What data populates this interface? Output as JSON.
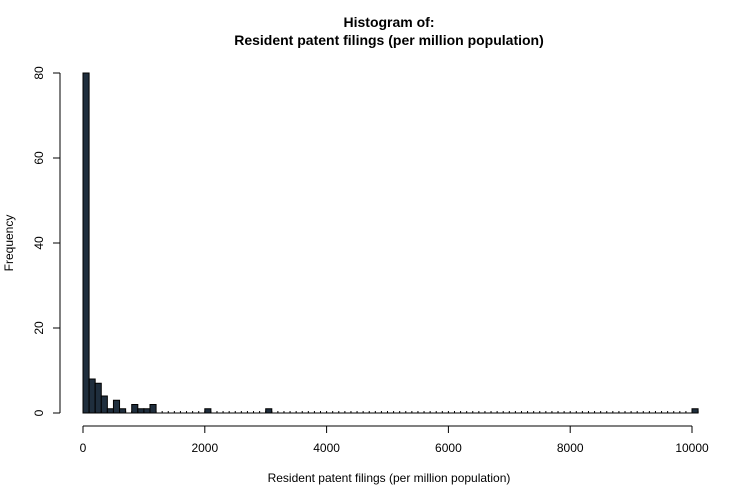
{
  "chart_data": {
    "type": "bar",
    "title": "Histogram of:",
    "subtitle": "Resident patent filings (per million population)",
    "xlabel": "Resident patent filings (per million population)",
    "ylabel": "Frequency",
    "xlim": [
      0,
      10000
    ],
    "ylim": [
      0,
      80
    ],
    "x_ticks": [
      "0",
      "2000",
      "4000",
      "6000",
      "8000",
      "10000"
    ],
    "y_ticks": [
      "0",
      "20",
      "40",
      "60",
      "80"
    ],
    "grid": false,
    "bin_width": 100,
    "bars": [
      {
        "x0": 0,
        "x1": 100,
        "count": 80
      },
      {
        "x0": 100,
        "x1": 200,
        "count": 8
      },
      {
        "x0": 200,
        "x1": 300,
        "count": 7
      },
      {
        "x0": 300,
        "x1": 400,
        "count": 4
      },
      {
        "x0": 400,
        "x1": 500,
        "count": 1
      },
      {
        "x0": 500,
        "x1": 600,
        "count": 3
      },
      {
        "x0": 600,
        "x1": 700,
        "count": 1
      },
      {
        "x0": 800,
        "x1": 900,
        "count": 2
      },
      {
        "x0": 900,
        "x1": 1000,
        "count": 1
      },
      {
        "x0": 1000,
        "x1": 1100,
        "count": 1
      },
      {
        "x0": 1100,
        "x1": 1200,
        "count": 2
      },
      {
        "x0": 2000,
        "x1": 2100,
        "count": 1
      },
      {
        "x0": 3000,
        "x1": 3100,
        "count": 1
      },
      {
        "x0": 10000,
        "x1": 10100,
        "count": 1
      }
    ],
    "colors": {
      "bar_fill": "#1f2e3d",
      "bar_stroke": "#000000"
    }
  }
}
